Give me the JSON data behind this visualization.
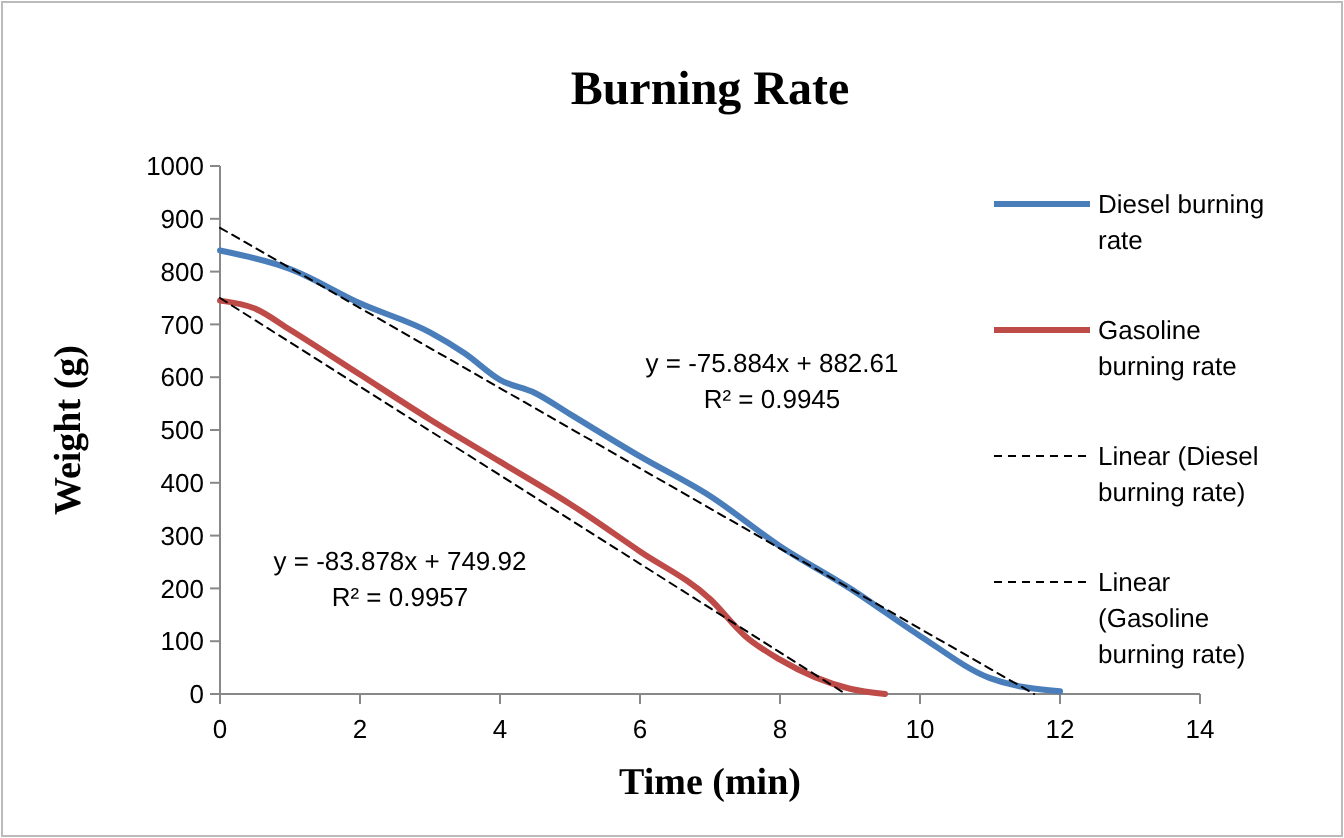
{
  "chart_data": {
    "type": "line",
    "title": "Burning Rate",
    "xlabel": "Time (min)",
    "ylabel": "Weight (g)",
    "xlim": [
      0,
      14
    ],
    "xticks": [
      0,
      2,
      4,
      6,
      8,
      10,
      12,
      14
    ],
    "ylim": [
      0,
      1000
    ],
    "yticks": [
      0,
      100,
      200,
      300,
      400,
      500,
      600,
      700,
      800,
      900,
      1000
    ],
    "grid": false,
    "legend": "right",
    "marker": "none",
    "series": [
      {
        "name": "Diesel burning rate",
        "color": "#4a7ebb",
        "x": [
          0,
          1,
          2,
          3,
          3.5,
          4,
          4.5,
          5,
          6,
          7,
          8,
          9,
          10,
          11,
          12
        ],
        "values": [
          840,
          805,
          740,
          685,
          645,
          595,
          570,
          530,
          450,
          375,
          280,
          200,
          110,
          30,
          5
        ]
      },
      {
        "name": "Gasoline burning rate",
        "color": "#be4b48",
        "x": [
          0,
          0.5,
          1,
          2,
          3,
          4,
          5,
          6,
          7,
          7.5,
          8,
          9,
          9.5
        ],
        "values": [
          745,
          730,
          690,
          605,
          520,
          440,
          360,
          270,
          180,
          110,
          65,
          10,
          0
        ]
      },
      {
        "name": "Linear (Diesel burning rate)",
        "color": "#000000",
        "line_style": "dashed",
        "x": [
          0,
          11.63
        ],
        "values": [
          883,
          0
        ]
      },
      {
        "name": "Linear (Gasoline burning rate)",
        "color": "#000000",
        "line_style": "dashed",
        "x": [
          0,
          8.94
        ],
        "values": [
          750,
          0
        ]
      }
    ],
    "annotations": [
      "y = -75.884x + 882.61",
      "R² = 0.9945",
      "y = -83.878x + 749.92",
      "R² = 0.9957"
    ]
  }
}
